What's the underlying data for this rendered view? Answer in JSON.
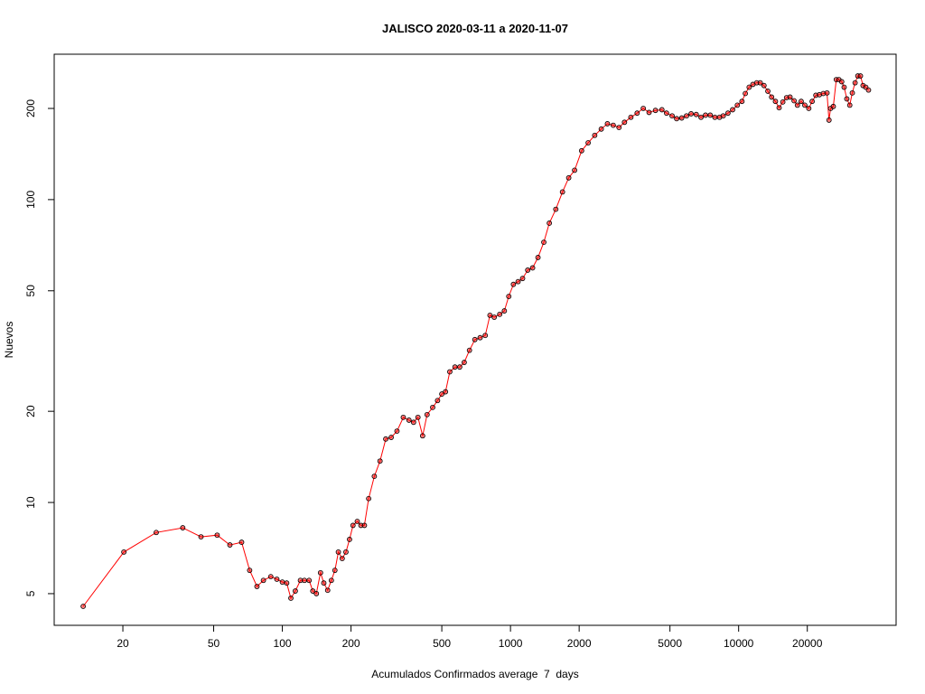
{
  "chart_data": {
    "type": "line",
    "title": "JALISCO 2020-03-11 a 2020-11-07",
    "x_label": "Acumulados Confirmados average  7  days",
    "y_label": "Nuevos",
    "log_x": true,
    "log_y": true,
    "xlim": [
      10,
      49000
    ],
    "ylim": [
      3.93,
      302
    ],
    "xticks": [
      20,
      50,
      100,
      200,
      500,
      1000,
      2000,
      5000,
      10000,
      20000
    ],
    "yticks": [
      5,
      10,
      20,
      50,
      100,
      200
    ],
    "series": [
      {
        "color": "#ff0000",
        "marker_color": "#000000",
        "x": [
          13.4,
          20.2,
          28,
          36.6,
          44,
          51.8,
          58.9,
          66.3,
          71.9,
          77.4,
          82.6,
          89,
          94.6,
          100,
          104.5,
          109,
          114,
          120,
          125,
          131,
          136,
          141,
          147,
          152,
          158,
          164,
          170,
          176,
          183,
          190,
          197,
          204,
          213,
          221,
          229,
          239,
          253,
          268,
          284,
          300,
          318,
          339,
          359,
          376,
          393,
          412,
          431,
          456,
          479,
          500,
          519,
          542,
          571,
          599,
          627,
          661,
          698,
          736,
          775,
          813,
          849,
          897,
          940,
          983,
          1030,
          1080,
          1130,
          1190,
          1250,
          1320,
          1400,
          1480,
          1580,
          1690,
          1800,
          1910,
          2050,
          2190,
          2340,
          2500,
          2660,
          2820,
          2990,
          3160,
          3370,
          3590,
          3820,
          4050,
          4320,
          4610,
          4830,
          5110,
          5350,
          5630,
          5910,
          6190,
          6520,
          6840,
          7160,
          7510,
          7870,
          8250,
          8560,
          8980,
          9410,
          9870,
          10340,
          10700,
          11120,
          11550,
          12000,
          12440,
          12920,
          13430,
          13950,
          14500,
          15050,
          15620,
          16220,
          16800,
          17500,
          18100,
          18800,
          19500,
          20300,
          21000,
          21800,
          22600,
          23500,
          24400,
          24900,
          25300,
          26000,
          26800,
          27500,
          28300,
          29000,
          29800,
          30700,
          31500,
          32400,
          33300,
          34200,
          35100,
          36100,
          37100
        ],
        "values": [
          4.54,
          6.86,
          7.96,
          8.25,
          7.7,
          7.8,
          7.24,
          7.39,
          5.97,
          5.28,
          5.53,
          5.69,
          5.58,
          5.46,
          5.42,
          4.83,
          5.1,
          5.53,
          5.53,
          5.53,
          5.1,
          5.0,
          5.86,
          5.42,
          5.13,
          5.53,
          5.97,
          6.86,
          6.53,
          6.86,
          7.55,
          8.4,
          8.66,
          8.4,
          8.4,
          10.3,
          12.2,
          13.7,
          16.2,
          16.4,
          17.2,
          19.1,
          18.7,
          18.4,
          19.1,
          16.6,
          19.5,
          20.6,
          21.7,
          22.8,
          23.2,
          27,
          28,
          28,
          29,
          31.8,
          34.5,
          35,
          35.6,
          41.5,
          40.9,
          41.8,
          42.9,
          47.9,
          52.5,
          53.6,
          54.9,
          58.5,
          59.5,
          64.4,
          72.3,
          83.6,
          92.9,
          106,
          118,
          125,
          145,
          154,
          163,
          171,
          178,
          176,
          173,
          180,
          187,
          193,
          200,
          194,
          197,
          198,
          193,
          189,
          185,
          186,
          189,
          192,
          191,
          187,
          190,
          190,
          187,
          187,
          189,
          193,
          198,
          205,
          211,
          224,
          235,
          240,
          243,
          243,
          238,
          228,
          218,
          211,
          201,
          210,
          217,
          218,
          212,
          205,
          211,
          205,
          200,
          211,
          221,
          222,
          224,
          225,
          183,
          200,
          203,
          249,
          249,
          245,
          235,
          215,
          205,
          225,
          243,
          256,
          256,
          238,
          235,
          230
        ]
      }
    ]
  }
}
